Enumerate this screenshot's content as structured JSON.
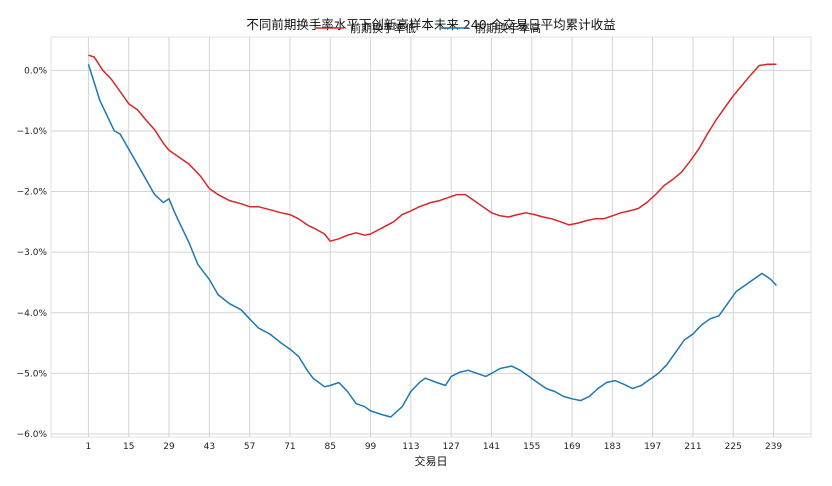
{
  "chart_data": {
    "type": "line",
    "title": "不同前期换手率水平下创新高样本未来 240 个交易日平均累计收益",
    "xlabel": "交易日",
    "ylabel": "",
    "x_tick_labels": [
      "1",
      "15",
      "29",
      "43",
      "57",
      "71",
      "85",
      "99",
      "113",
      "127",
      "141",
      "155",
      "169",
      "183",
      "197",
      "211",
      "225",
      "239"
    ],
    "y_tick_labels": [
      "0.0%",
      "−1.0%",
      "−2.0%",
      "−3.0%",
      "−4.0%",
      "−5.0%",
      "−6.0%"
    ],
    "y_ticks": [
      0.0,
      -1.0,
      -2.0,
      -3.0,
      -4.0,
      -5.0,
      -6.0
    ],
    "xlim": [
      -12,
      252
    ],
    "ylim": [
      -6.05,
      0.55
    ],
    "grid": true,
    "legend_position": "top-center",
    "series": [
      {
        "name": "前期换手率低",
        "color": "#d62728",
        "x": [
          1,
          3,
          6,
          9,
          12,
          15,
          18,
          21,
          24,
          27,
          29,
          33,
          36,
          40,
          43,
          46,
          50,
          54,
          57,
          60,
          64,
          68,
          71,
          74,
          77,
          80,
          83,
          85,
          88,
          91,
          94,
          97,
          99,
          103,
          107,
          110,
          113,
          116,
          120,
          123,
          126,
          129,
          132,
          135,
          138,
          141,
          144,
          147,
          150,
          153,
          156,
          159,
          162,
          165,
          168,
          171,
          174,
          177,
          180,
          183,
          186,
          189,
          192,
          195,
          198,
          201,
          204,
          207,
          210,
          213,
          216,
          219,
          222,
          225,
          228,
          231,
          234,
          237,
          240
        ],
        "values": [
          0.25,
          0.22,
          0.0,
          -0.15,
          -0.35,
          -0.55,
          -0.65,
          -0.82,
          -0.98,
          -1.2,
          -1.32,
          -1.45,
          -1.55,
          -1.75,
          -1.95,
          -2.05,
          -2.15,
          -2.2,
          -2.25,
          -2.25,
          -2.3,
          -2.35,
          -2.38,
          -2.45,
          -2.55,
          -2.62,
          -2.7,
          -2.82,
          -2.78,
          -2.72,
          -2.68,
          -2.72,
          -2.7,
          -2.6,
          -2.5,
          -2.38,
          -2.32,
          -2.25,
          -2.18,
          -2.15,
          -2.1,
          -2.05,
          -2.05,
          -2.15,
          -2.25,
          -2.35,
          -2.4,
          -2.42,
          -2.38,
          -2.35,
          -2.38,
          -2.42,
          -2.45,
          -2.5,
          -2.55,
          -2.52,
          -2.48,
          -2.45,
          -2.45,
          -2.4,
          -2.35,
          -2.32,
          -2.28,
          -2.18,
          -2.05,
          -1.9,
          -1.8,
          -1.68,
          -1.5,
          -1.3,
          -1.05,
          -0.82,
          -0.62,
          -0.42,
          -0.25,
          -0.08,
          0.08,
          0.1,
          0.1
        ]
      },
      {
        "name": "前期换手率高",
        "color": "#1f77b4",
        "x": [
          1,
          3,
          5,
          8,
          10,
          12,
          15,
          18,
          21,
          24,
          27,
          29,
          31,
          33,
          36,
          39,
          43,
          46,
          50,
          54,
          57,
          60,
          64,
          68,
          71,
          74,
          77,
          79,
          83,
          85,
          88,
          91,
          94,
          97,
          99,
          103,
          106,
          110,
          113,
          116,
          118,
          122,
          125,
          127,
          130,
          133,
          136,
          139,
          141,
          144,
          148,
          151,
          154,
          157,
          160,
          163,
          166,
          169,
          172,
          175,
          178,
          181,
          184,
          187,
          190,
          193,
          196,
          199,
          202,
          205,
          208,
          211,
          214,
          217,
          220,
          223,
          226,
          229,
          232,
          235,
          238,
          240
        ],
        "values": [
          0.1,
          -0.2,
          -0.5,
          -0.8,
          -1.0,
          -1.05,
          -1.3,
          -1.55,
          -1.8,
          -2.05,
          -2.18,
          -2.12,
          -2.35,
          -2.55,
          -2.85,
          -3.2,
          -3.45,
          -3.7,
          -3.85,
          -3.95,
          -4.1,
          -4.25,
          -4.35,
          -4.5,
          -4.6,
          -4.72,
          -4.95,
          -5.08,
          -5.22,
          -5.2,
          -5.15,
          -5.3,
          -5.5,
          -5.55,
          -5.62,
          -5.68,
          -5.72,
          -5.55,
          -5.3,
          -5.15,
          -5.08,
          -5.15,
          -5.2,
          -5.05,
          -4.98,
          -4.95,
          -5.0,
          -5.05,
          -5.0,
          -4.92,
          -4.88,
          -4.95,
          -5.05,
          -5.15,
          -5.25,
          -5.3,
          -5.38,
          -5.42,
          -5.45,
          -5.38,
          -5.25,
          -5.15,
          -5.12,
          -5.18,
          -5.25,
          -5.2,
          -5.1,
          -5.0,
          -4.85,
          -4.65,
          -4.45,
          -4.35,
          -4.2,
          -4.1,
          -4.05,
          -3.85,
          -3.65,
          -3.55,
          -3.45,
          -3.35,
          -3.45,
          -3.55
        ]
      }
    ]
  }
}
